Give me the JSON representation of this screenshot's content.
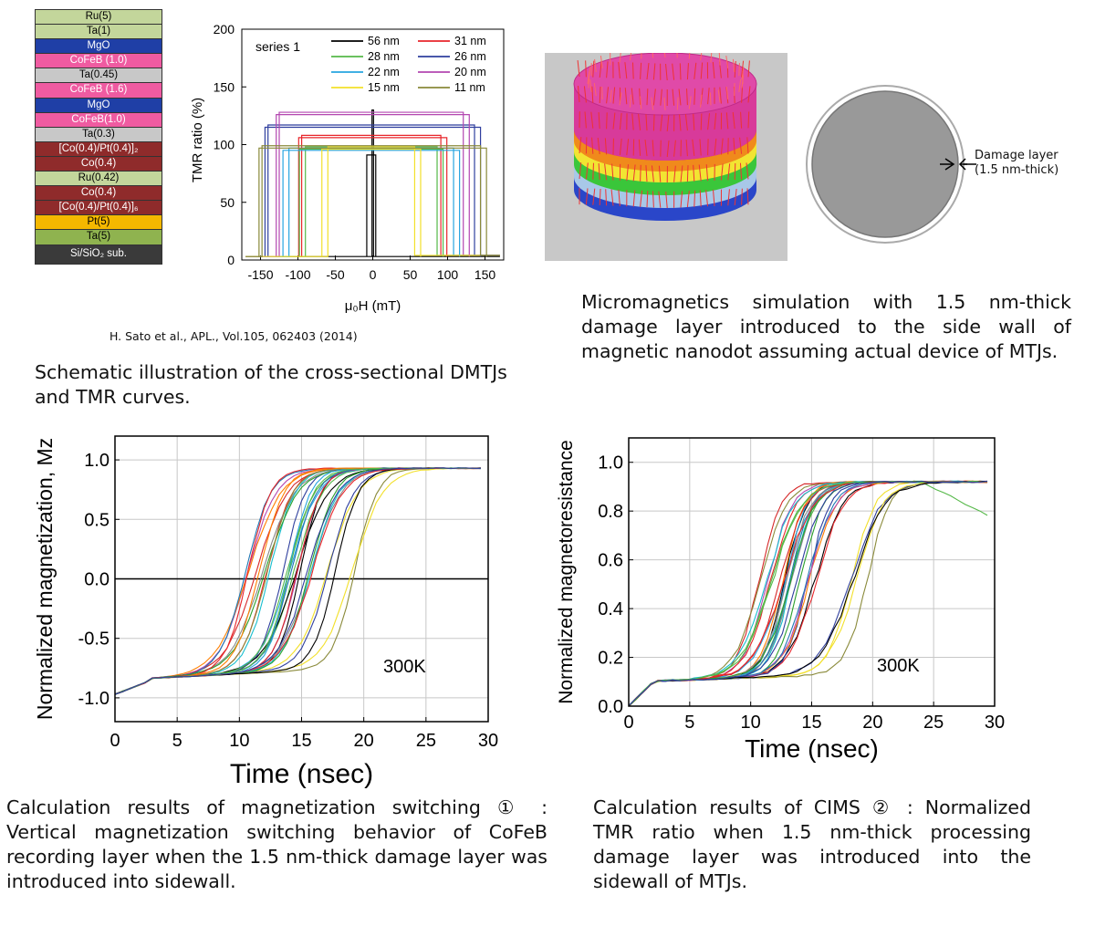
{
  "stack_layers": [
    {
      "label": "Ru(5)",
      "color": "#c3d69b",
      "text": "#000000"
    },
    {
      "label": "Ta(1)",
      "color": "#c3d69b",
      "text": "#000000"
    },
    {
      "label": "MgO",
      "color": "#1f3fa6",
      "text": "#ffffff"
    },
    {
      "label": "CoFeB (1.0)",
      "color": "#ef5ba1",
      "text": "#ffffff"
    },
    {
      "label": "Ta(0.45)",
      "color": "#c8c8c8",
      "text": "#000000"
    },
    {
      "label": "CoFeB (1.6)",
      "color": "#ef5ba1",
      "text": "#ffffff"
    },
    {
      "label": "MgO",
      "color": "#1f3fa6",
      "text": "#ffffff"
    },
    {
      "label": "CoFeB(1.0)",
      "color": "#ef5ba1",
      "text": "#ffffff"
    },
    {
      "label": "Ta(0.3)",
      "color": "#c8c8c8",
      "text": "#000000"
    },
    {
      "label": "[Co(0.4)/Pt(0.4)]₂",
      "color": "#8f2b2b",
      "text": "#ffffff"
    },
    {
      "label": "Co(0.4)",
      "color": "#8f2b2b",
      "text": "#ffffff"
    },
    {
      "label": "Ru(0.42)",
      "color": "#c3d69b",
      "text": "#000000"
    },
    {
      "label": "Co(0.4)",
      "color": "#8f2b2b",
      "text": "#ffffff"
    },
    {
      "label": "[Co(0.4)/Pt(0.4)]₆",
      "color": "#8f2b2b",
      "text": "#ffffff"
    },
    {
      "label": "Pt(5)",
      "color": "#f5b800",
      "text": "#000000"
    },
    {
      "label": "Ta(5)",
      "color": "#8fb34f",
      "text": "#000000"
    },
    {
      "label": "Si/SiO₂ sub.",
      "color": "#3a3a3a",
      "text": "#ffffff"
    }
  ],
  "citation": "H. Sato et al., APL., Vol.105, 062403 (2014)",
  "caption_top_left": "Schematic illustration of the cross-sectional DMTJs and TMR curves.",
  "caption_top_right": "Micromagnetics simulation with 1.5 nm-thick damage layer introduced to the side wall of magnetic nanodot assuming actual device of MTJs.",
  "caption_bottom_left": "Calculation results of magnetization switching ① : Vertical magnetization switching behavior of CoFeB recording layer when the 1.5 nm-thick damage layer was introduced into sidewall.",
  "caption_bottom_right": "Calculation results of CIMS ② : Normalized TMR ratio when 1.5 nm-thick processing damage layer was introduced into the sidewall of MTJs.",
  "damage_label_line1": "Damage layer",
  "damage_label_line2": "(1.5 nm-thick)",
  "chart_data": [
    {
      "type": "line",
      "title": "",
      "annotation": "series 1",
      "xlabel": "μ₀H (mT)",
      "ylabel": "TMR ratio (%)",
      "xlim": [
        -175,
        175
      ],
      "ylim": [
        0,
        200
      ],
      "xticks": [
        -150,
        -100,
        -50,
        0,
        50,
        100,
        150
      ],
      "yticks": [
        0,
        50,
        100,
        150,
        200
      ],
      "series": [
        {
          "name": "56 nm",
          "color": "#000000",
          "plateau": 93,
          "hc": 0
        },
        {
          "name": "31 nm",
          "color": "#e8262b",
          "plateau": 108,
          "hc": 95
        },
        {
          "name": "28 nm",
          "color": "#55b848",
          "plateau": 98,
          "hc": 90
        },
        {
          "name": "26 nm",
          "color": "#2f3f9e",
          "plateau": 117,
          "hc": 140
        },
        {
          "name": "22 nm",
          "color": "#26a4e0",
          "plateau": 97,
          "hc": 112
        },
        {
          "name": "20 nm",
          "color": "#b347b0",
          "plateau": 128,
          "hc": 125
        },
        {
          "name": "15 nm",
          "color": "#f2e02a",
          "plateau": 98,
          "hc": 60
        },
        {
          "name": "11 nm",
          "color": "#8a8a3a",
          "plateau": 99,
          "hc": 148
        }
      ]
    },
    {
      "type": "line",
      "title": "",
      "annotation": "300K",
      "xlabel": "Time (nsec)",
      "ylabel": "Normalized magnetization, Mz",
      "xlim": [
        0,
        30
      ],
      "ylim": [
        -1.2,
        1.2
      ],
      "xticks": [
        0,
        5,
        10,
        15,
        20,
        25,
        30
      ],
      "yticks": [
        -1.0,
        -0.5,
        0.0,
        0.5,
        1.0
      ],
      "start": -0.97,
      "plateau": 0.93,
      "curve_count": 32
    },
    {
      "type": "line",
      "title": "",
      "annotation": "300K",
      "xlabel": "Time (nsec)",
      "ylabel": "Normalized magnetoresistance",
      "xlim": [
        0,
        30
      ],
      "ylim": [
        0,
        1.1
      ],
      "xticks": [
        0,
        5,
        10,
        15,
        20,
        25,
        30
      ],
      "yticks": [
        0.0,
        0.2,
        0.4,
        0.6,
        0.8,
        1.0
      ],
      "start": 0.0,
      "plateau": 0.92,
      "curve_count": 32
    }
  ],
  "colors": {
    "disk_magenta": "#d83a9a",
    "disk_background": "#c8c8c8",
    "nanodot_fill": "#999999",
    "arrow_red": "#ee3333"
  }
}
